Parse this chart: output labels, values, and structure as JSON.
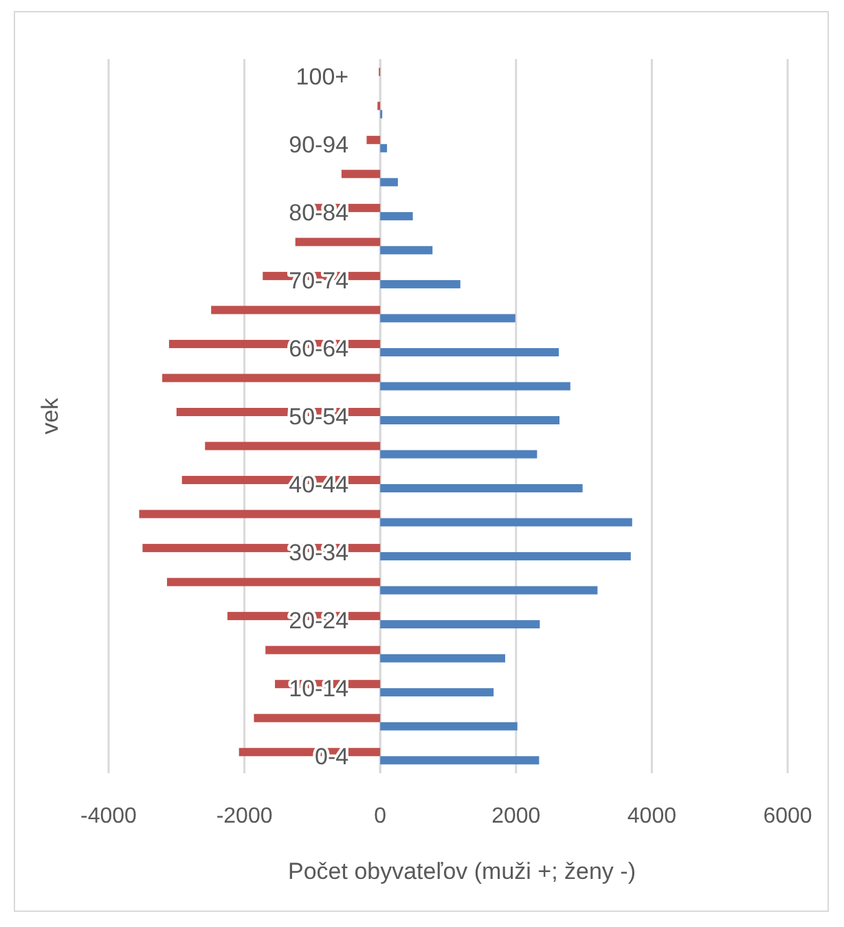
{
  "chart_data": {
    "type": "bar",
    "orientation": "horizontal",
    "xlabel": "Počet obyvateľov (muži +; ženy -)",
    "ylabel": "vek",
    "categories": [
      "100+",
      null,
      "90-94",
      null,
      "80-84",
      null,
      "70-74",
      null,
      "60-64",
      null,
      "50-54",
      null,
      "40-44",
      null,
      "30-34",
      null,
      "20-24",
      null,
      "10-14",
      null,
      "0-4"
    ],
    "series": [
      {
        "color": "#4f81bd",
        "values": [
          0,
          30,
          100,
          260,
          480,
          770,
          1180,
          1990,
          2630,
          2800,
          2640,
          2310,
          2980,
          3710,
          3690,
          3200,
          2350,
          1840,
          1670,
          2020,
          2340
        ]
      },
      {
        "color": "#c0504d",
        "values": [
          -20,
          -40,
          -200,
          -570,
          -1020,
          -1250,
          -1730,
          -2490,
          -3110,
          -3210,
          -3000,
          -2580,
          -2920,
          -3550,
          -3500,
          -3140,
          -2250,
          -1690,
          -1550,
          -1860,
          -2080
        ]
      }
    ],
    "xlim": [
      -4000,
      6000
    ],
    "xticks": [
      -4000,
      -2000,
      0,
      2000,
      4000,
      6000
    ],
    "grid": "x"
  }
}
